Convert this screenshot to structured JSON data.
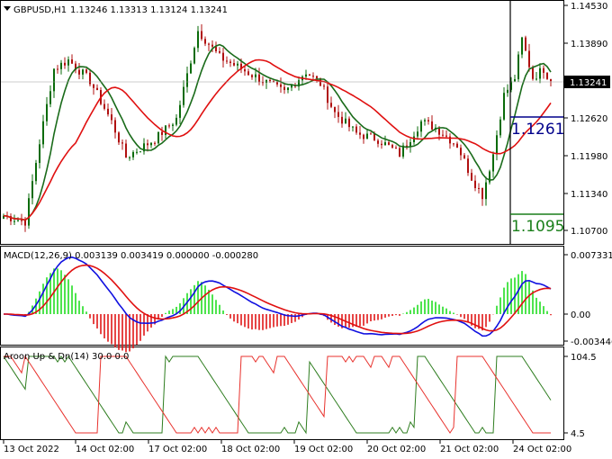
{
  "chart_data": [
    {
      "type": "candlestick",
      "symbol_label": "GBPUSD,H1",
      "ohlc_label": "1.13246 1.13313 1.13124 1.13241",
      "ylim": [
        1.104,
        1.147
      ],
      "y_ticks": [
        "1.14530",
        "1.13890",
        "1.13241",
        "1.12620",
        "1.11980",
        "1.11340",
        "1.10700"
      ],
      "current_price": "1.13241",
      "object_labels": [
        {
          "text": "1.1261",
          "color": "#00008b"
        },
        {
          "text": "1.1095",
          "color": "#1a7f1a"
        }
      ],
      "x_labels": [
        "13 Oct 2022",
        "14 Oct 02:00",
        "17 Oct 02:00",
        "18 Oct 02:00",
        "19 Oct 02:00",
        "20 Oct 02:00",
        "21 Oct 02:00",
        "24 Oct 02:00"
      ],
      "close_path": [
        {
          "bar": 0,
          "close": 1.1095
        },
        {
          "bar": 6,
          "close": 1.1085
        },
        {
          "bar": 10,
          "close": 1.122
        },
        {
          "bar": 14,
          "close": 1.1345
        },
        {
          "bar": 18,
          "close": 1.136
        },
        {
          "bar": 24,
          "close": 1.1325
        },
        {
          "bar": 30,
          "close": 1.1255
        },
        {
          "bar": 34,
          "close": 1.1195
        },
        {
          "bar": 42,
          "close": 1.1225
        },
        {
          "bar": 48,
          "close": 1.126
        },
        {
          "bar": 54,
          "close": 1.141
        },
        {
          "bar": 60,
          "close": 1.1365
        },
        {
          "bar": 66,
          "close": 1.1345
        },
        {
          "bar": 72,
          "close": 1.1325
        },
        {
          "bar": 78,
          "close": 1.1305
        },
        {
          "bar": 84,
          "close": 1.134
        },
        {
          "bar": 88,
          "close": 1.132
        },
        {
          "bar": 92,
          "close": 1.127
        },
        {
          "bar": 98,
          "close": 1.1235
        },
        {
          "bar": 104,
          "close": 1.1225
        },
        {
          "bar": 110,
          "close": 1.12
        },
        {
          "bar": 116,
          "close": 1.1255
        },
        {
          "bar": 120,
          "close": 1.1245
        },
        {
          "bar": 126,
          "close": 1.1215
        },
        {
          "bar": 130,
          "close": 1.116
        },
        {
          "bar": 133,
          "close": 1.113
        },
        {
          "bar": 136,
          "close": 1.12
        },
        {
          "bar": 139,
          "close": 1.13
        },
        {
          "bar": 142,
          "close": 1.133
        },
        {
          "bar": 144,
          "close": 1.1395
        },
        {
          "bar": 147,
          "close": 1.133
        },
        {
          "bar": 150,
          "close": 1.1345
        },
        {
          "bar": 152,
          "close": 1.1324
        }
      ],
      "moving_averages": [
        {
          "color": "#1a6b1a",
          "period": 8
        },
        {
          "color": "#e01010",
          "period": 21
        }
      ]
    },
    {
      "type": "macd",
      "label": "MACD(12,26,9) 0.003139 0.003419 0.000000 -0.000280",
      "ylim": [
        -0.004,
        0.0078
      ],
      "y_ticks": [
        "0.007331",
        "0.00",
        "-0.003446"
      ]
    },
    {
      "type": "aroon",
      "label": "Aroon Up & Dn(14) 30.0 0.0",
      "ylim": [
        0,
        110
      ],
      "y_ticks": [
        "104.5",
        "4.5"
      ],
      "series": [
        {
          "name": "Up",
          "color": "#2e7d1f"
        },
        {
          "name": "Dn",
          "color": "#e8322d"
        }
      ]
    }
  ],
  "colors": {
    "bull": "#0a6b0a",
    "bear": "#b01010",
    "macd_line": "#1010e0",
    "signal_line": "#e01010",
    "hist_up": "#22dd22",
    "hist_down": "#e01818"
  }
}
